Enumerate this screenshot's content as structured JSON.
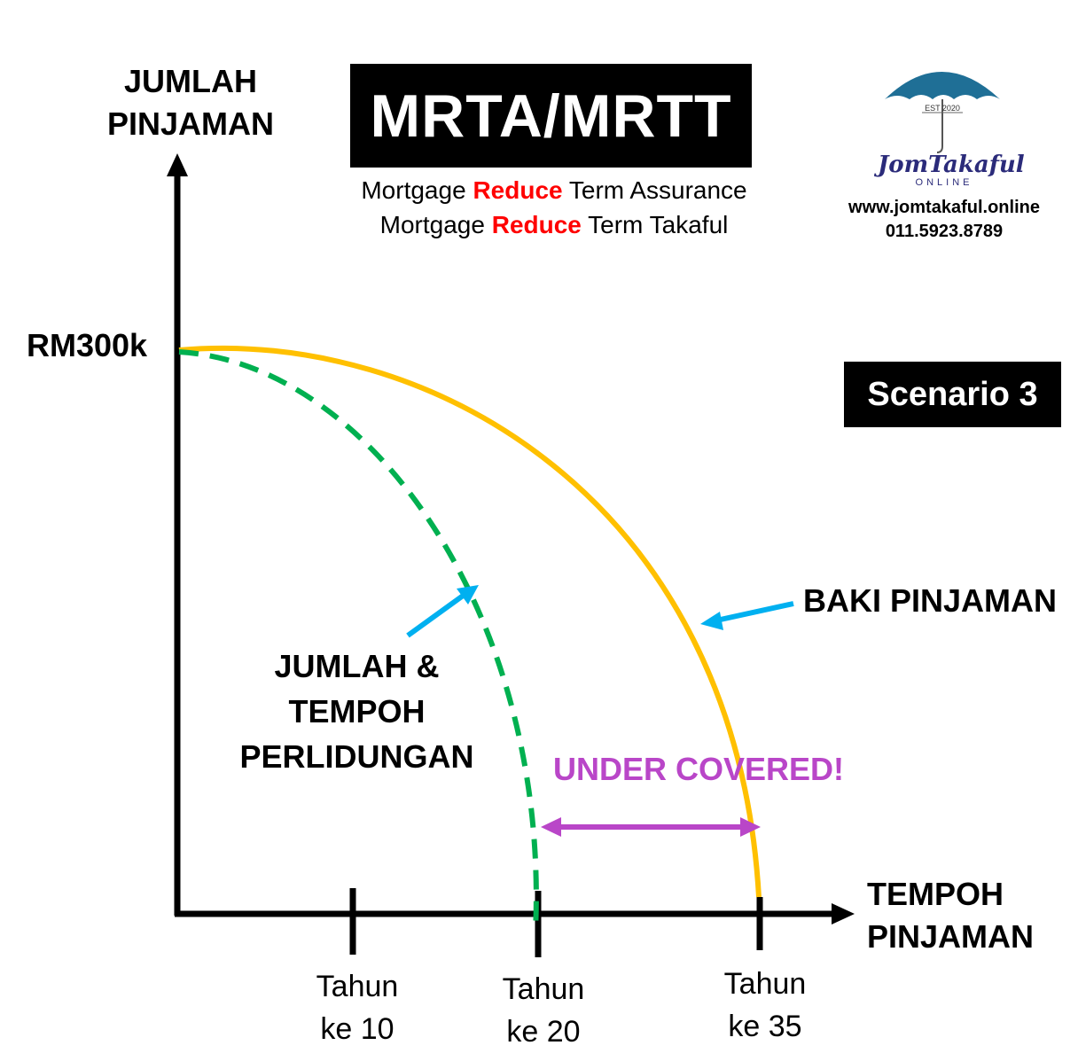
{
  "title": "MRTA/MRTT",
  "subtitle": {
    "line1": {
      "pre": "Mortgage ",
      "highlight": "Reduce",
      "post": " Term Assurance"
    },
    "line2": {
      "pre": "Mortgage ",
      "highlight": "Reduce",
      "post": " Term Takaful"
    }
  },
  "scenario": "Scenario 3",
  "y_axis": {
    "line1": "JUMLAH",
    "line2": "PINJAMAN"
  },
  "x_axis": {
    "line1": "TEMPOH",
    "line2": "PINJAMAN"
  },
  "y_value_label": "RM300k",
  "ticks": [
    {
      "line1": "Tahun",
      "line2": "ke 10",
      "year": 10
    },
    {
      "line1": "Tahun",
      "line2": "ke 20",
      "year": 20
    },
    {
      "line1": "Tahun",
      "line2": "ke 35",
      "year": 35
    }
  ],
  "curves": {
    "loan_balance": {
      "label": "BAKI PINJAMAN",
      "color": "#ffc000",
      "start_value": "RM300k",
      "end_year": 35
    },
    "coverage": {
      "label_line1": "JUMLAH &",
      "label_line2": "TEMPOH",
      "label_line3": "PERLIDUNGAN",
      "color": "#00b050",
      "end_year": 20
    }
  },
  "gap": {
    "label": "UNDER COVERED!",
    "color": "#b946c8",
    "from_year": 20,
    "to_year": 35
  },
  "brand": {
    "est": "EST 2020",
    "name": "JomTakaful",
    "tag": "ONLINE",
    "website": "www.jomtakaful.online",
    "phone": "011.5923.8789",
    "umbrella_color": "#1f6f96",
    "name_color": "#2b2b7a"
  },
  "colors": {
    "arrow_blue": "#00b0f0"
  }
}
